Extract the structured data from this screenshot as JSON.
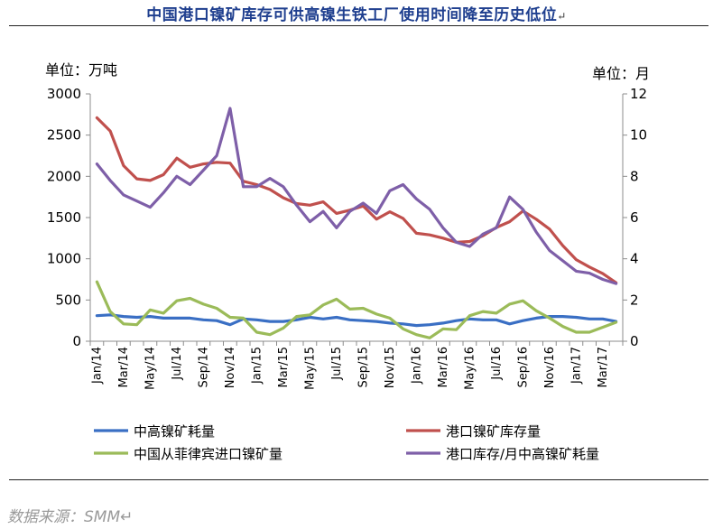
{
  "title": "中国港口镍矿库存可供高镍生铁工厂使用时间降至历史低位",
  "title_mark": "↵",
  "unit_left": "单位：万吨",
  "unit_right": "单位：月",
  "source": "数据来源：SMM↵",
  "colors": {
    "blue": "#3a6fc4",
    "red": "#c0504d",
    "green": "#9bbb59",
    "purple": "#7e5fa8"
  },
  "chart_data": {
    "type": "line",
    "x": [
      "Jan/14",
      "Feb/14",
      "Mar/14",
      "Apr/14",
      "May/14",
      "Jun/14",
      "Jul/14",
      "Aug/14",
      "Sep/14",
      "Oct/14",
      "Nov/14",
      "Dec/14",
      "Jan/15",
      "Feb/15",
      "Mar/15",
      "Apr/15",
      "May/15",
      "Jun/15",
      "Jul/15",
      "Aug/15",
      "Sep/15",
      "Oct/15",
      "Nov/15",
      "Dec/15",
      "Jan/16",
      "Feb/16",
      "Mar/16",
      "Apr/16",
      "May/16",
      "Jun/16",
      "Jul/16",
      "Aug/16",
      "Sep/16",
      "Oct/16",
      "Nov/16",
      "Dec/16",
      "Jan/17",
      "Feb/17",
      "Mar/17",
      "Apr/17"
    ],
    "x_tick_labels": [
      "Jan/14",
      "Mar/14",
      "May/14",
      "Jul/14",
      "Sep/14",
      "Nov/14",
      "Jan/15",
      "Mar/15",
      "May/15",
      "Jul/15",
      "Sep/15",
      "Nov/15",
      "Jan/16",
      "Mar/16",
      "May/16",
      "Jul/16",
      "Sep/16",
      "Nov/16",
      "Jan/17",
      "Mar/17"
    ],
    "y_left": {
      "range": [
        0,
        3000
      ],
      "ticks": [
        "0",
        "500",
        "1000",
        "1500",
        "2000",
        "2500",
        "3000"
      ]
    },
    "y_right": {
      "range": [
        0,
        12
      ],
      "ticks": [
        "0",
        "2",
        "4",
        "6",
        "8",
        "10",
        "12"
      ]
    },
    "grid": false,
    "legend_position": "bottom",
    "series": [
      {
        "name": "中高镍矿耗量",
        "axis": "left",
        "color": "#3a6fc4",
        "values": [
          310,
          320,
          300,
          290,
          300,
          280,
          280,
          280,
          260,
          250,
          200,
          270,
          260,
          240,
          240,
          260,
          290,
          270,
          290,
          260,
          250,
          240,
          220,
          210,
          190,
          200,
          220,
          250,
          270,
          260,
          260,
          210,
          250,
          280,
          300,
          300,
          290,
          270,
          270,
          240
        ]
      },
      {
        "name": "港口镍矿库存量",
        "axis": "left",
        "color": "#c0504d",
        "values": [
          2710,
          2550,
          2130,
          1970,
          1950,
          2020,
          2220,
          2110,
          2150,
          2170,
          2160,
          1940,
          1900,
          1840,
          1740,
          1670,
          1650,
          1690,
          1550,
          1590,
          1640,
          1480,
          1570,
          1490,
          1310,
          1290,
          1250,
          1200,
          1210,
          1280,
          1380,
          1450,
          1580,
          1480,
          1360,
          1160,
          990,
          900,
          820,
          710
        ]
      },
      {
        "name": "中国从菲律宾进口镍矿量",
        "axis": "left",
        "color": "#9bbb59",
        "values": [
          720,
          360,
          210,
          200,
          380,
          340,
          490,
          520,
          450,
          400,
          290,
          280,
          110,
          80,
          160,
          300,
          320,
          440,
          510,
          390,
          400,
          330,
          280,
          150,
          80,
          40,
          150,
          140,
          310,
          360,
          340,
          450,
          490,
          370,
          280,
          180,
          110,
          110,
          170,
          230
        ]
      },
      {
        "name": "港口库存/月中高镍矿耗量",
        "axis": "right",
        "color": "#7e5fa8",
        "values": [
          8.6,
          7.8,
          7.1,
          6.8,
          6.5,
          7.2,
          8.0,
          7.6,
          8.3,
          9.0,
          11.3,
          7.5,
          7.5,
          7.9,
          7.5,
          6.6,
          5.8,
          6.3,
          5.5,
          6.3,
          6.7,
          6.2,
          7.3,
          7.6,
          6.9,
          6.4,
          5.5,
          4.8,
          4.6,
          5.2,
          5.5,
          7.0,
          6.4,
          5.3,
          4.4,
          3.9,
          3.4,
          3.3,
          3.0,
          2.8
        ]
      }
    ]
  }
}
